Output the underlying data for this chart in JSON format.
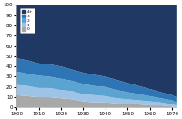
{
  "years": [
    1900,
    1905,
    1910,
    1915,
    1920,
    1925,
    1930,
    1935,
    1940,
    1945,
    1950,
    1955,
    1960,
    1965,
    1970,
    1972
  ],
  "series": {
    "4+": [
      52,
      54,
      57,
      58,
      60,
      63,
      66,
      68,
      70,
      73,
      76,
      79,
      82,
      85,
      88,
      90
    ],
    "3": [
      13,
      13,
      12,
      12,
      12,
      11,
      11,
      11,
      10,
      10,
      9,
      8,
      7,
      6,
      5,
      5
    ],
    "2": [
      13,
      12,
      12,
      11,
      11,
      10,
      10,
      9,
      9,
      8,
      7,
      6,
      5,
      4,
      4,
      3
    ],
    "1": [
      10,
      10,
      9,
      9,
      8,
      8,
      7,
      7,
      6,
      5,
      5,
      4,
      4,
      3,
      2,
      2
    ],
    "0": [
      12,
      11,
      10,
      10,
      9,
      8,
      6,
      5,
      5,
      4,
      3,
      3,
      2,
      2,
      1,
      0
    ]
  },
  "colors": {
    "4+": "#1f3864",
    "3": "#2e75b6",
    "2": "#5ba3d0",
    "1": "#9dc3e6",
    "0": "#a8a8a8"
  },
  "ylim": [
    0,
    100
  ],
  "xlim": [
    1900,
    1972
  ],
  "xticks": [
    1900,
    1910,
    1920,
    1930,
    1940,
    1950,
    1960,
    1970
  ],
  "yticks": [
    0,
    10,
    20,
    30,
    40,
    50,
    60,
    70,
    80,
    90,
    100
  ],
  "bg_color": "#ffffff"
}
